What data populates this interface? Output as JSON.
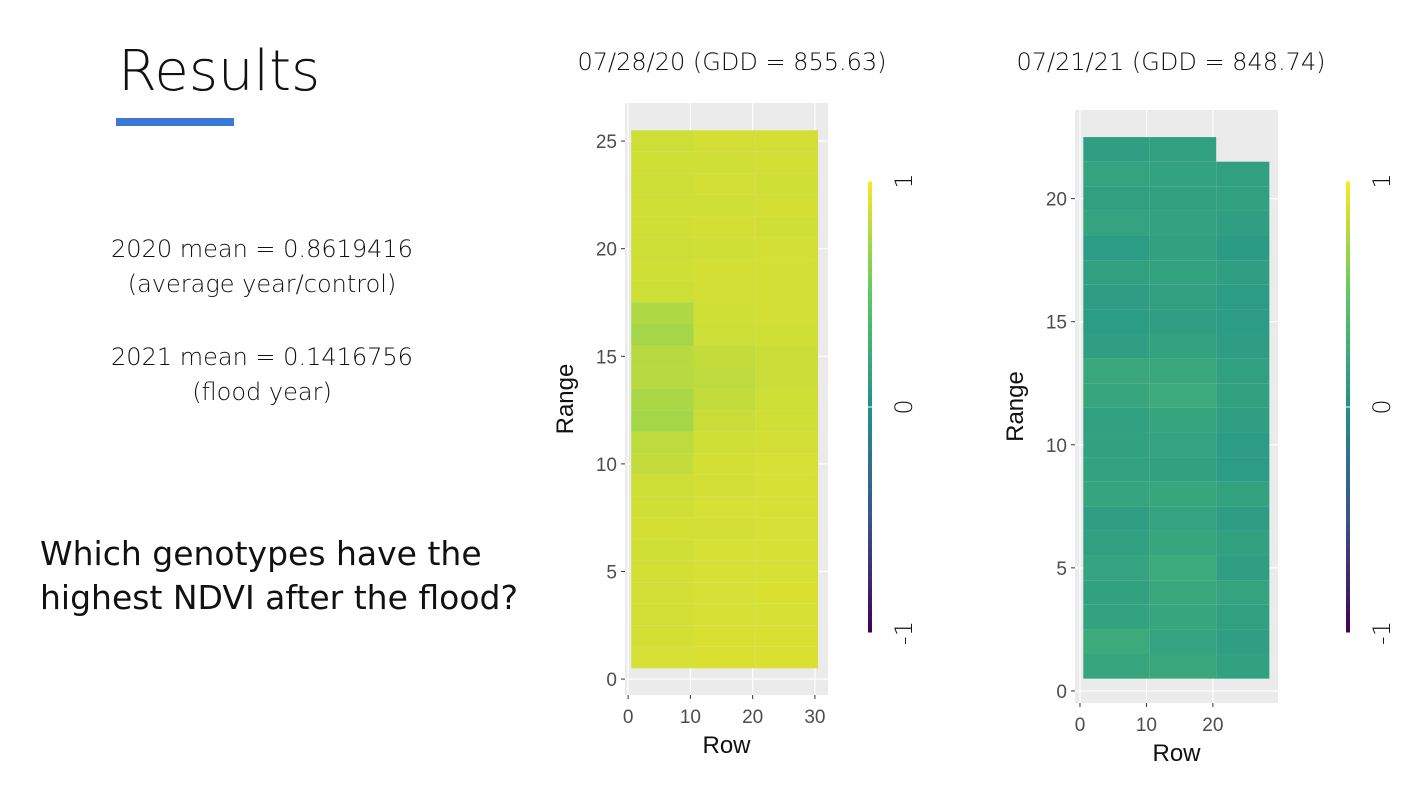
{
  "slide": {
    "title": "Results",
    "stats": [
      "2020 mean = 0.8619416",
      "(average year/control)",
      "2021 mean = 0.1416756",
      "(flood year)"
    ],
    "question": [
      "Which genotypes have the",
      "highest NDVI after the flood?"
    ]
  },
  "chart_data": [
    {
      "type": "heatmap",
      "title": "07/28/20  (GDD = 855.63)",
      "xlabel": "Row",
      "ylabel": "Range",
      "xlim": [
        -0.5,
        32.1
      ],
      "ylim": [
        -0.74,
        26.77
      ],
      "xticks": [
        0,
        10,
        20,
        30
      ],
      "yticks": [
        0,
        5,
        10,
        15,
        20,
        25
      ],
      "x_bins": [
        0.5,
        10.5,
        20.5,
        30.5
      ],
      "y": [
        1,
        2,
        3,
        4,
        5,
        6,
        7,
        8,
        9,
        10,
        11,
        12,
        13,
        14,
        15,
        16,
        17,
        18,
        19,
        20,
        21,
        22,
        23,
        24,
        25
      ],
      "values": [
        [
          0.88,
          0.89,
          0.89
        ],
        [
          0.87,
          0.89,
          0.89
        ],
        [
          0.87,
          0.88,
          0.88
        ],
        [
          0.87,
          0.88,
          0.89
        ],
        [
          0.87,
          0.88,
          0.88
        ],
        [
          0.86,
          0.88,
          0.88
        ],
        [
          0.87,
          0.87,
          0.88
        ],
        [
          0.86,
          0.88,
          0.88
        ],
        [
          0.85,
          0.87,
          0.88
        ],
        [
          0.82,
          0.87,
          0.88
        ],
        [
          0.8,
          0.86,
          0.87
        ],
        [
          0.72,
          0.84,
          0.86
        ],
        [
          0.74,
          0.82,
          0.85
        ],
        [
          0.78,
          0.8,
          0.84
        ],
        [
          0.78,
          0.82,
          0.84
        ],
        [
          0.72,
          0.85,
          0.86
        ],
        [
          0.75,
          0.86,
          0.87
        ],
        [
          0.85,
          0.87,
          0.87
        ],
        [
          0.86,
          0.87,
          0.87
        ],
        [
          0.85,
          0.86,
          0.87
        ],
        [
          0.86,
          0.87,
          0.86
        ],
        [
          0.86,
          0.86,
          0.87
        ],
        [
          0.85,
          0.87,
          0.86
        ],
        [
          0.86,
          0.86,
          0.87
        ],
        [
          0.85,
          0.87,
          0.87
        ]
      ],
      "clim": [
        -1,
        1
      ],
      "cticks": [
        -1,
        0,
        1
      ],
      "colors": [
        "#440154",
        "#3b528b",
        "#21918c",
        "#5ec962",
        "#fde725"
      ]
    },
    {
      "type": "heatmap",
      "title": "07/21/21  (GDD = 848.74)",
      "xlabel": "Row",
      "ylabel": "Range",
      "xlim": [
        -0.75,
        29.8
      ],
      "ylim": [
        -0.49,
        23.6
      ],
      "xticks": [
        0,
        10,
        20
      ],
      "yticks": [
        0,
        5,
        10,
        15,
        20
      ],
      "x_bins": [
        0.5,
        10.5,
        20.5,
        28.5
      ],
      "y": [
        1,
        2,
        3,
        4,
        5,
        6,
        7,
        8,
        9,
        10,
        11,
        12,
        13,
        14,
        15,
        16,
        17,
        18,
        19,
        20,
        21,
        22
      ],
      "values": [
        [
          0.18,
          0.2,
          0.14
        ],
        [
          0.22,
          0.16,
          0.12
        ],
        [
          0.15,
          0.18,
          0.13
        ],
        [
          0.14,
          0.2,
          0.16
        ],
        [
          0.16,
          0.22,
          0.12
        ],
        [
          0.13,
          0.18,
          0.14
        ],
        [
          0.12,
          0.16,
          0.11
        ],
        [
          0.17,
          0.19,
          0.15
        ],
        [
          0.15,
          0.14,
          0.1
        ],
        [
          0.14,
          0.16,
          0.1
        ],
        [
          0.13,
          0.17,
          0.12
        ],
        [
          0.19,
          0.22,
          0.14
        ],
        [
          0.2,
          0.2,
          0.13
        ],
        [
          0.12,
          0.15,
          0.11
        ],
        [
          0.1,
          0.12,
          0.1
        ],
        [
          0.11,
          0.13,
          0.1
        ],
        [
          0.13,
          0.15,
          0.12
        ],
        [
          0.1,
          0.14,
          0.09
        ],
        [
          0.16,
          0.15,
          0.12
        ],
        [
          0.13,
          0.14,
          0.14
        ],
        [
          0.16,
          0.15,
          0.13
        ],
        [
          0.12,
          0.13,
          null
        ]
      ],
      "clim": [
        -1,
        1
      ],
      "cticks": [
        -1,
        0,
        1
      ],
      "colors": [
        "#440154",
        "#3b528b",
        "#21918c",
        "#5ec962",
        "#fde725"
      ]
    }
  ]
}
